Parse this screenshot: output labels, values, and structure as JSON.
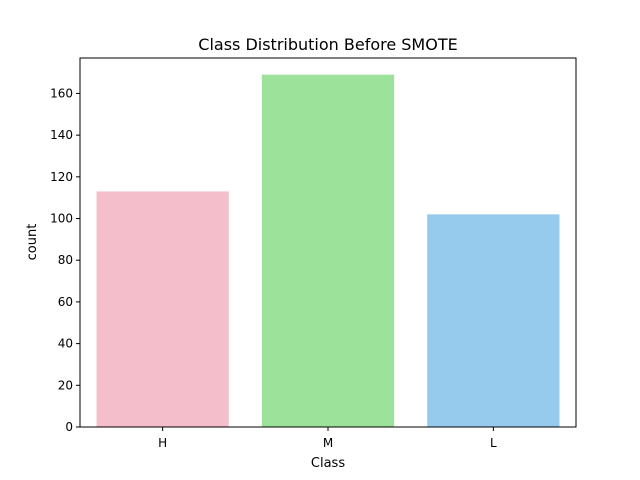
{
  "chart_data": {
    "type": "bar",
    "title": "Class Distribution Before SMOTE",
    "xlabel": "Class",
    "ylabel": "count",
    "categories": [
      "H",
      "M",
      "L"
    ],
    "values": [
      113,
      169,
      102
    ],
    "colors": [
      "#f4bfca",
      "#9de29b",
      "#96cbed"
    ],
    "ylim": [
      0,
      177
    ],
    "yticks": [
      0,
      20,
      40,
      60,
      80,
      100,
      120,
      140,
      160
    ],
    "grid": false,
    "legend": "none"
  }
}
